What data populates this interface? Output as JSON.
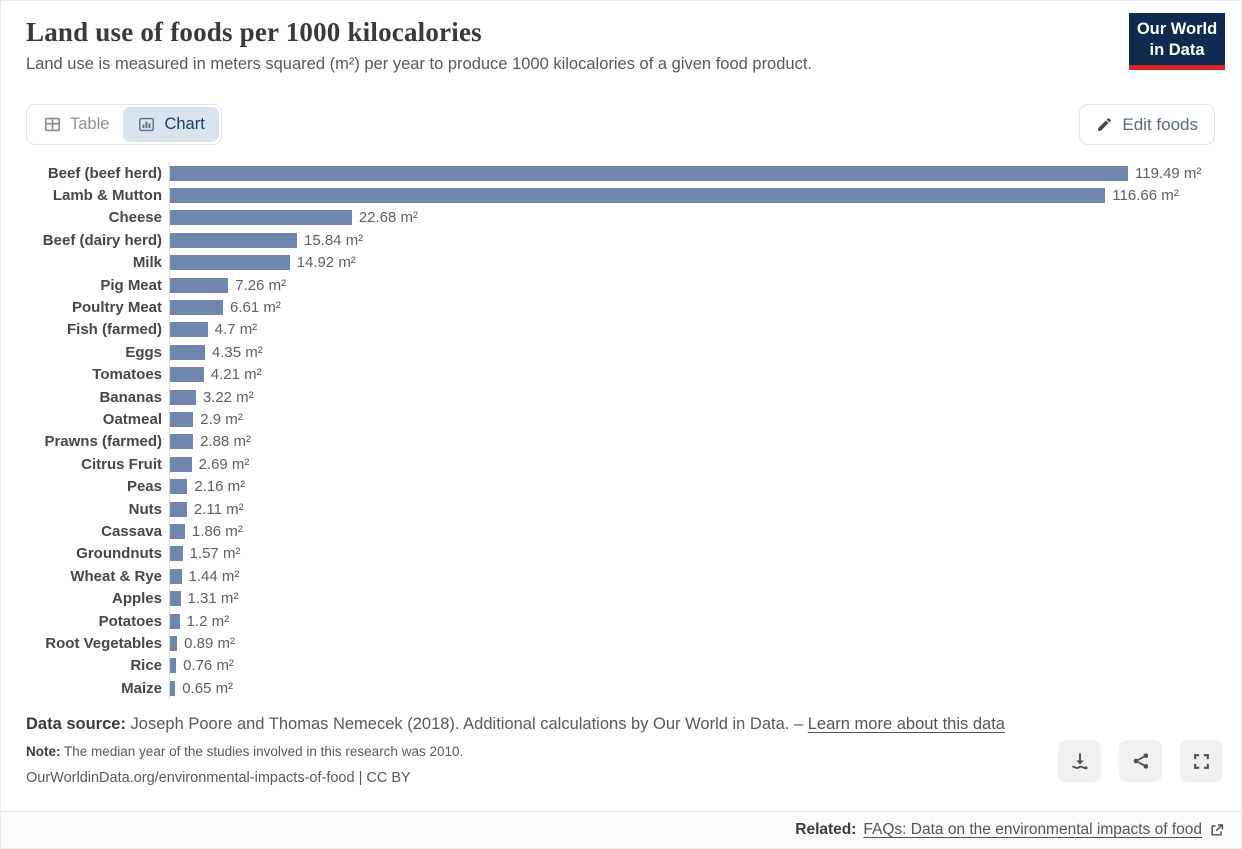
{
  "header": {
    "title": "Land use of foods per 1000 kilocalories",
    "subtitle": "Land use is measured in meters squared (m²) per year to produce 1000 kilocalories of a given food product.",
    "logo": {
      "line1": "Our World",
      "line2": "in Data"
    }
  },
  "toolbar": {
    "tabs": [
      {
        "label": "Table",
        "active": false
      },
      {
        "label": "Chart",
        "active": true
      }
    ],
    "edit_button_label": "Edit foods"
  },
  "chart_data": {
    "type": "bar",
    "orientation": "horizontal",
    "title": "Land use of foods per 1000 kilocalories",
    "xlabel": "",
    "ylabel": "",
    "unit": "m²",
    "xlim": [
      0,
      120
    ],
    "grid": false,
    "categories": [
      "Beef (beef herd)",
      "Lamb & Mutton",
      "Cheese",
      "Beef (dairy herd)",
      "Milk",
      "Pig Meat",
      "Poultry Meat",
      "Fish (farmed)",
      "Eggs",
      "Tomatoes",
      "Bananas",
      "Oatmeal",
      "Prawns (farmed)",
      "Citrus Fruit",
      "Peas",
      "Nuts",
      "Cassava",
      "Groundnuts",
      "Wheat & Rye",
      "Apples",
      "Potatoes",
      "Root Vegetables",
      "Rice",
      "Maize"
    ],
    "values": [
      119.49,
      116.66,
      22.68,
      15.84,
      14.92,
      7.26,
      6.61,
      4.7,
      4.35,
      4.21,
      3.22,
      2.9,
      2.88,
      2.69,
      2.16,
      2.11,
      1.86,
      1.57,
      1.44,
      1.31,
      1.2,
      0.89,
      0.76,
      0.65
    ],
    "labels": [
      "119.49 m²",
      "116.66 m²",
      "22.68 m²",
      "15.84 m²",
      "14.92 m²",
      "7.26 m²",
      "6.61 m²",
      "4.7 m²",
      "4.35 m²",
      "4.21 m²",
      "3.22 m²",
      "2.9 m²",
      "2.88 m²",
      "2.69 m²",
      "2.16 m²",
      "2.11 m²",
      "1.86 m²",
      "1.57 m²",
      "1.44 m²",
      "1.31 m²",
      "1.2 m²",
      "0.89 m²",
      "0.76 m²",
      "0.65 m²"
    ]
  },
  "footer": {
    "data_source_label": "Data source:",
    "data_source_text": "Joseph Poore and Thomas Nemecek (2018). Additional calculations by Our World in Data.",
    "separator": "–",
    "learn_more_link": "Learn more about this data",
    "note_label": "Note:",
    "note_text": "The median year of the studies involved in this research was 2010.",
    "citation": "OurWorldinData.org/environmental-impacts-of-food | CC BY",
    "actions": [
      "download",
      "share",
      "fullscreen"
    ]
  },
  "related": {
    "label": "Related:",
    "link": "FAQs: Data on the environmental impacts of food"
  },
  "colors": {
    "bar": "#7186ac",
    "axis_line": "#d9d9d9",
    "accent_navy": "#1d3d63",
    "tab_active_bg": "#dae4ef",
    "logo_navy": "#0f2a4e",
    "logo_red": "#d8252a"
  }
}
